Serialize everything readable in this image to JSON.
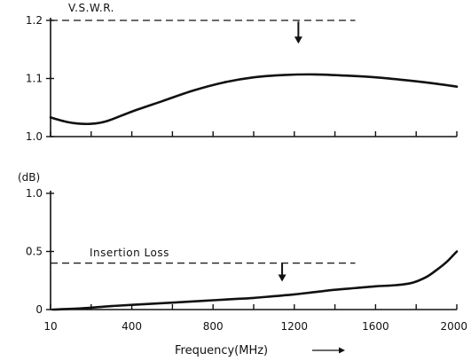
{
  "chart_data": [
    {
      "type": "line",
      "title": "",
      "xlabel": "",
      "ylabel": "",
      "annotation": "V.S.W.R.",
      "xlim": [
        0,
        2000
      ],
      "ylim": [
        1.0,
        1.2
      ],
      "yticks": [
        1.0,
        1.1,
        1.2
      ],
      "ytick_labels": [
        "1.0",
        "1.1",
        "1.2"
      ],
      "xticks": [
        0,
        200,
        400,
        600,
        800,
        1000,
        1200,
        1400,
        1600,
        1800,
        2000
      ],
      "limit": {
        "y": 1.2,
        "x_start": 0,
        "x_end": 1500
      },
      "arrow": {
        "x": 1220,
        "y_from": 1.198,
        "y_to": 1.16
      },
      "series": [
        {
          "x": [
            0,
            60,
            120,
            200,
            280,
            400,
            550,
            700,
            850,
            1000,
            1150,
            1300,
            1450,
            1600,
            1750,
            1900,
            2000
          ],
          "y": [
            1.033,
            1.027,
            1.023,
            1.022,
            1.027,
            1.043,
            1.061,
            1.079,
            1.093,
            1.102,
            1.106,
            1.107,
            1.105,
            1.102,
            1.097,
            1.091,
            1.086
          ]
        }
      ]
    },
    {
      "type": "line",
      "title": "",
      "ylabel": "(dB)",
      "xlabel": "Frequency(MHz)",
      "xlabel_arrow": "⟶",
      "annotation": "Insertion Loss",
      "xlim": [
        0,
        2000
      ],
      "ylim": [
        0,
        1.0
      ],
      "yticks": [
        0,
        0.5,
        1.0
      ],
      "ytick_labels": [
        "0",
        "0.5",
        "1.0"
      ],
      "xticks": [
        0,
        200,
        400,
        600,
        800,
        1000,
        1200,
        1400,
        1600,
        1800,
        2000
      ],
      "xtick_labels": [
        {
          "x": 0,
          "label": "10"
        },
        {
          "x": 400,
          "label": "400"
        },
        {
          "x": 800,
          "label": "800"
        },
        {
          "x": 1200,
          "label": "1200"
        },
        {
          "x": 1600,
          "label": "1600"
        },
        {
          "x": 2000,
          "label": "2000"
        }
      ],
      "limit": {
        "y": 0.4,
        "x_start": 0,
        "x_end": 1500
      },
      "arrow": {
        "x": 1140,
        "y_from": 0.395,
        "y_to": 0.24
      },
      "series": [
        {
          "x": [
            10,
            150,
            300,
            450,
            600,
            750,
            900,
            1000,
            1100,
            1200,
            1300,
            1400,
            1500,
            1600,
            1700,
            1780,
            1850,
            1900,
            1950,
            2000
          ],
          "y": [
            0.0,
            0.01,
            0.03,
            0.045,
            0.06,
            0.075,
            0.09,
            0.1,
            0.115,
            0.13,
            0.15,
            0.17,
            0.185,
            0.2,
            0.21,
            0.23,
            0.28,
            0.34,
            0.41,
            0.5
          ]
        }
      ]
    }
  ]
}
